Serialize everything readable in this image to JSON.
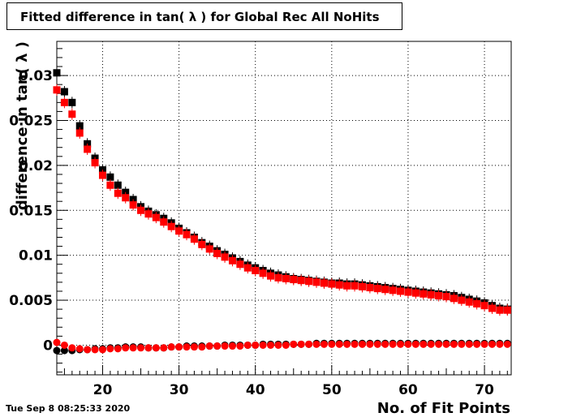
{
  "title": "Fitted difference in tan( λ ) for Global Rec All NoHits",
  "timestamp": "Tue Sep  8 08:25:33 2020",
  "colors": {
    "series_black": "#000000",
    "series_red": "#ff0000",
    "grid": "#000000"
  },
  "chart_data": {
    "type": "scatter",
    "title": "Fitted difference in tan( λ ) for Global Rec All NoHits",
    "xlabel": "No. of Fit Points",
    "ylabel": "difference in tan( λ )",
    "xlim": [
      14,
      73.5
    ],
    "ylim": [
      -0.0033,
      0.0338
    ],
    "grid": true,
    "x_ticks": [
      20,
      30,
      40,
      50,
      60,
      70
    ],
    "x_tick_labels": [
      "20",
      "30",
      "40",
      "50",
      "60",
      "70"
    ],
    "y_ticks": [
      0,
      0.005,
      0.01,
      0.015,
      0.02,
      0.025,
      0.03
    ],
    "y_tick_labels": [
      "0",
      "0.005",
      "0.01",
      "0.015",
      "0.02",
      "0.025",
      "0.03"
    ],
    "x": [
      14,
      15,
      16,
      17,
      18,
      19,
      20,
      21,
      22,
      23,
      24,
      25,
      26,
      27,
      28,
      29,
      30,
      31,
      32,
      33,
      34,
      35,
      36,
      37,
      38,
      39,
      40,
      41,
      42,
      43,
      44,
      45,
      46,
      47,
      48,
      49,
      50,
      51,
      52,
      53,
      54,
      55,
      56,
      57,
      58,
      59,
      60,
      61,
      62,
      63,
      64,
      65,
      66,
      67,
      68,
      69,
      70,
      71,
      72,
      73
    ],
    "series": [
      {
        "marker": "square",
        "color": "#000000",
        "values": [
          0.0303,
          0.0282,
          0.027,
          0.0244,
          0.0224,
          0.0208,
          0.0195,
          0.0187,
          0.0178,
          0.017,
          0.0162,
          0.0154,
          0.0149,
          0.0145,
          0.0141,
          0.0136,
          0.013,
          0.0125,
          0.012,
          0.0114,
          0.011,
          0.0105,
          0.0101,
          0.0097,
          0.0093,
          0.0089,
          0.0086,
          0.0083,
          0.008,
          0.0078,
          0.0076,
          0.0074,
          0.0073,
          0.0072,
          0.0071,
          0.007,
          0.0069,
          0.0069,
          0.0068,
          0.0068,
          0.0067,
          0.0066,
          0.0065,
          0.0064,
          0.0063,
          0.0062,
          0.0061,
          0.006,
          0.0059,
          0.0058,
          0.0057,
          0.0056,
          0.0055,
          0.0053,
          0.0051,
          0.0049,
          0.0047,
          0.0044,
          0.0041,
          0.004
        ]
      },
      {
        "marker": "square",
        "color": "#ff0000",
        "values": [
          0.0284,
          0.027,
          0.0257,
          0.0236,
          0.0218,
          0.0203,
          0.0189,
          0.0178,
          0.0169,
          0.0164,
          0.0156,
          0.015,
          0.0146,
          0.0142,
          0.0137,
          0.0132,
          0.0127,
          0.0123,
          0.0118,
          0.0112,
          0.0107,
          0.0102,
          0.0098,
          0.0094,
          0.009,
          0.0086,
          0.0083,
          0.008,
          0.0077,
          0.0075,
          0.0074,
          0.0073,
          0.0072,
          0.0071,
          0.007,
          0.0069,
          0.0068,
          0.0067,
          0.0066,
          0.0066,
          0.0065,
          0.0064,
          0.0063,
          0.0062,
          0.0061,
          0.006,
          0.0059,
          0.0058,
          0.0057,
          0.0056,
          0.0055,
          0.0054,
          0.0052,
          0.005,
          0.0048,
          0.0046,
          0.0044,
          0.0041,
          0.0039,
          0.0039
        ]
      },
      {
        "marker": "circle",
        "color": "#000000",
        "values": [
          -0.0006,
          -0.0006,
          -0.0006,
          -0.0005,
          -0.0005,
          -0.0004,
          -0.0004,
          -0.0003,
          -0.0003,
          -0.0002,
          -0.0002,
          -0.0002,
          -0.0003,
          -0.0003,
          -0.0003,
          -0.0002,
          -0.0002,
          -0.0001,
          -0.0001,
          -0.0001,
          -0.0001,
          -0.0001,
          0.0,
          0.0,
          0.0,
          0.0,
          0.0,
          0.0001,
          0.0001,
          0.0001,
          0.0001,
          0.0001,
          0.0001,
          0.0001,
          0.0002,
          0.0002,
          0.0002,
          0.0002,
          0.0002,
          0.0002,
          0.0002,
          0.0002,
          0.0002,
          0.0002,
          0.0002,
          0.0002,
          0.0002,
          0.0002,
          0.0002,
          0.0002,
          0.0002,
          0.0002,
          0.0002,
          0.0002,
          0.0002,
          0.0002,
          0.0002,
          0.0002,
          0.0002,
          0.0002
        ]
      },
      {
        "marker": "circle",
        "color": "#ff0000",
        "values": [
          0.0003,
          0.0,
          -0.0003,
          -0.0004,
          -0.0005,
          -0.0005,
          -0.0005,
          -0.0004,
          -0.0004,
          -0.0003,
          -0.0003,
          -0.0003,
          -0.0003,
          -0.0003,
          -0.0003,
          -0.0002,
          -0.0002,
          -0.0002,
          -0.0002,
          -0.0002,
          -0.0001,
          -0.0001,
          -0.0001,
          -0.0001,
          -0.0001,
          0.0,
          0.0,
          0.0,
          0.0,
          0.0,
          0.0,
          0.0001,
          0.0001,
          0.0001,
          0.0001,
          0.0001,
          0.0001,
          0.0001,
          0.0001,
          0.0001,
          0.0001,
          0.0001,
          0.0001,
          0.0001,
          0.0001,
          0.0001,
          0.0001,
          0.0001,
          0.0001,
          0.0001,
          0.0001,
          0.0001,
          0.0001,
          0.0001,
          0.0001,
          0.0001,
          0.0001,
          0.0001,
          0.0001,
          0.0001
        ]
      }
    ]
  }
}
